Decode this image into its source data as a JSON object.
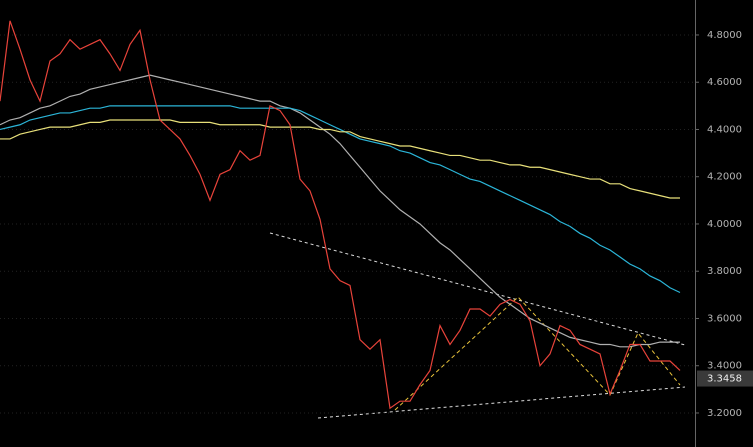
{
  "chart_data": {
    "type": "line",
    "ylim": [
      3.056,
      4.948
    ],
    "yticks": [
      {
        "value": 3.2,
        "label": "3.2000"
      },
      {
        "value": 3.4,
        "label": "3.4000"
      },
      {
        "value": 3.6,
        "label": "3.6000"
      },
      {
        "value": 3.8,
        "label": "3.8000"
      },
      {
        "value": 4.0,
        "label": "4.0000"
      },
      {
        "value": 4.2,
        "label": "4.2000"
      },
      {
        "value": 4.4,
        "label": "4.4000"
      },
      {
        "value": 4.6,
        "label": "4.6000"
      },
      {
        "value": 4.8,
        "label": "4.8000"
      }
    ],
    "grid": true,
    "last_price": 3.3458,
    "series": [
      {
        "color": "#b0b0b0",
        "values": [
          4.42,
          4.44,
          4.45,
          4.47,
          4.49,
          4.5,
          4.52,
          4.54,
          4.55,
          4.57,
          4.58,
          4.59,
          4.6,
          4.61,
          4.62,
          4.63,
          4.62,
          4.61,
          4.6,
          4.59,
          4.58,
          4.57,
          4.56,
          4.55,
          4.54,
          4.53,
          4.52,
          4.52,
          4.5,
          4.49,
          4.47,
          4.44,
          4.41,
          4.38,
          4.34,
          4.29,
          4.24,
          4.19,
          4.14,
          4.1,
          4.06,
          4.03,
          4.0,
          3.96,
          3.92,
          3.89,
          3.85,
          3.81,
          3.77,
          3.73,
          3.69,
          3.66,
          3.63,
          3.6,
          3.58,
          3.56,
          3.54,
          3.52,
          3.51,
          3.5,
          3.49,
          3.49,
          3.48,
          3.48,
          3.49,
          3.49,
          3.5,
          3.5,
          3.5
        ]
      },
      {
        "color": "#2bb5d8",
        "values": [
          4.4,
          4.41,
          4.42,
          4.44,
          4.45,
          4.46,
          4.47,
          4.47,
          4.48,
          4.49,
          4.49,
          4.5,
          4.5,
          4.5,
          4.5,
          4.5,
          4.5,
          4.5,
          4.5,
          4.5,
          4.5,
          4.5,
          4.5,
          4.5,
          4.49,
          4.49,
          4.49,
          4.49,
          4.49,
          4.49,
          4.48,
          4.46,
          4.44,
          4.42,
          4.4,
          4.38,
          4.36,
          4.35,
          4.34,
          4.33,
          4.31,
          4.3,
          4.28,
          4.26,
          4.25,
          4.23,
          4.21,
          4.19,
          4.18,
          4.16,
          4.14,
          4.12,
          4.1,
          4.08,
          4.06,
          4.04,
          4.01,
          3.99,
          3.96,
          3.94,
          3.91,
          3.89,
          3.86,
          3.83,
          3.81,
          3.78,
          3.76,
          3.73,
          3.71
        ]
      },
      {
        "color": "#e8e07a",
        "values": [
          4.36,
          4.36,
          4.38,
          4.39,
          4.4,
          4.41,
          4.41,
          4.41,
          4.42,
          4.43,
          4.43,
          4.44,
          4.44,
          4.44,
          4.44,
          4.44,
          4.44,
          4.44,
          4.43,
          4.43,
          4.43,
          4.43,
          4.42,
          4.42,
          4.42,
          4.42,
          4.42,
          4.41,
          4.41,
          4.41,
          4.41,
          4.41,
          4.4,
          4.4,
          4.39,
          4.39,
          4.37,
          4.36,
          4.35,
          4.34,
          4.33,
          4.33,
          4.32,
          4.31,
          4.3,
          4.29,
          4.29,
          4.28,
          4.27,
          4.27,
          4.26,
          4.25,
          4.25,
          4.24,
          4.24,
          4.23,
          4.22,
          4.21,
          4.2,
          4.19,
          4.19,
          4.17,
          4.17,
          4.15,
          4.14,
          4.13,
          4.12,
          4.11,
          4.11
        ]
      },
      {
        "color": "#e8433a",
        "values": [
          4.52,
          4.86,
          4.74,
          4.61,
          4.52,
          4.69,
          4.72,
          4.78,
          4.74,
          4.76,
          4.78,
          4.72,
          4.65,
          4.76,
          4.82,
          4.61,
          4.44,
          4.4,
          4.36,
          4.29,
          4.21,
          4.1,
          4.21,
          4.23,
          4.31,
          4.27,
          4.29,
          4.5,
          4.48,
          4.42,
          4.19,
          4.14,
          4.02,
          3.81,
          3.76,
          3.74,
          3.51,
          3.47,
          3.51,
          3.22,
          3.25,
          3.25,
          3.32,
          3.38,
          3.57,
          3.49,
          3.55,
          3.64,
          3.64,
          3.61,
          3.66,
          3.68,
          3.66,
          3.59,
          3.4,
          3.45,
          3.57,
          3.55,
          3.49,
          3.47,
          3.45,
          3.28,
          3.38,
          3.49,
          3.49,
          3.42,
          3.42,
          3.42,
          3.38
        ]
      }
    ]
  }
}
